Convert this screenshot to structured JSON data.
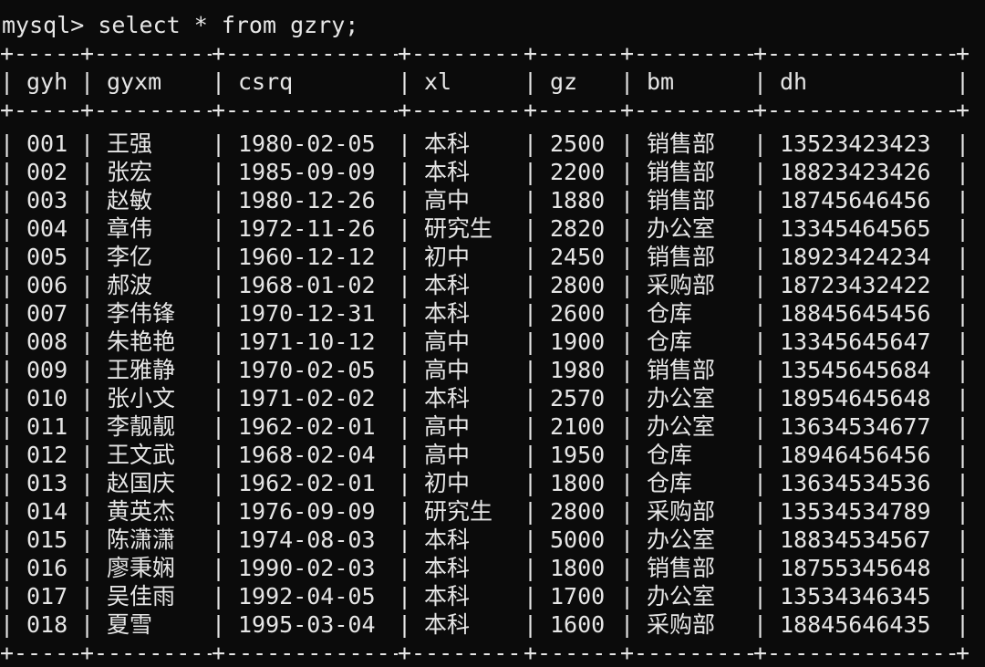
{
  "terminal": {
    "prompt_line": "mysql> select * from gzry;",
    "colors": {
      "background": "#0b0b0b",
      "foreground": "#e6e6e6"
    }
  },
  "table": {
    "name": "gzry-query-result",
    "columns": [
      "gyh",
      "gyxm",
      "csrq",
      "xl",
      "gz",
      "bm",
      "dh"
    ],
    "rows": [
      [
        "001",
        "王强",
        "1980-02-05",
        "本科",
        "2500",
        "销售部",
        "13523423423"
      ],
      [
        "002",
        "张宏",
        "1985-09-09",
        "本科",
        "2200",
        "销售部",
        "18823423426"
      ],
      [
        "003",
        "赵敏",
        "1980-12-26",
        "高中",
        "1880",
        "销售部",
        "18745646456"
      ],
      [
        "004",
        "章伟",
        "1972-11-26",
        "研究生",
        "2820",
        "办公室",
        "13345464565"
      ],
      [
        "005",
        "李亿",
        "1960-12-12",
        "初中",
        "2450",
        "销售部",
        "18923424234"
      ],
      [
        "006",
        "郝波",
        "1968-01-02",
        "本科",
        "2800",
        "采购部",
        "18723432422"
      ],
      [
        "007",
        "李伟锋",
        "1970-12-31",
        "本科",
        "2600",
        "仓库",
        "18845645456"
      ],
      [
        "008",
        "朱艳艳",
        "1971-10-12",
        "高中",
        "1900",
        "仓库",
        "13345645647"
      ],
      [
        "009",
        "王雅静",
        "1970-02-05",
        "高中",
        "1980",
        "销售部",
        "13545645684"
      ],
      [
        "010",
        "张小文",
        "1971-02-02",
        "本科",
        "2570",
        "办公室",
        "18954645648"
      ],
      [
        "011",
        "李靓靓",
        "1962-02-01",
        "高中",
        "2100",
        "办公室",
        "13634534677"
      ],
      [
        "012",
        "王文武",
        "1968-02-04",
        "高中",
        "1950",
        "仓库",
        "18946456456"
      ],
      [
        "013",
        "赵国庆",
        "1962-02-01",
        "初中",
        "1800",
        "仓库",
        "13634534536"
      ],
      [
        "014",
        "黄英杰",
        "1976-09-09",
        "研究生",
        "2800",
        "采购部",
        "13534534789"
      ],
      [
        "015",
        "陈潇潇",
        "1974-08-03",
        "本科",
        "5000",
        "办公室",
        "18834534567"
      ],
      [
        "016",
        "廖秉娴",
        "1990-02-03",
        "本科",
        "1800",
        "销售部",
        "18755345648"
      ],
      [
        "017",
        "吴佳雨",
        "1992-04-05",
        "本科",
        "1700",
        "办公室",
        "13534346345"
      ],
      [
        "018",
        "夏雪",
        "1995-03-04",
        "本科",
        "1600",
        "采购部",
        "18845646435"
      ]
    ]
  }
}
